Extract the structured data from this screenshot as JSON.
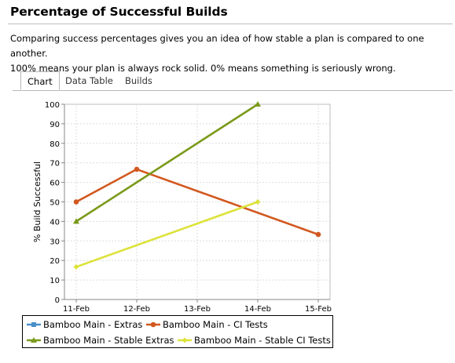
{
  "page": {
    "title": "Percentage of Successful Builds",
    "description_line1": "Comparing success percentages gives you an idea of how stable a plan is compared to one another.",
    "description_line2": "100% means your plan is always rock solid. 0% means something is seriously wrong."
  },
  "tabs": [
    {
      "label": "Chart",
      "active": true
    },
    {
      "label": "Data Table",
      "active": false
    },
    {
      "label": "Builds",
      "active": false
    }
  ],
  "chart_data": {
    "type": "line",
    "title": "",
    "xlabel": "",
    "ylabel": "% Build Successful",
    "categories": [
      "11-Feb",
      "12-Feb",
      "13-Feb",
      "14-Feb",
      "15-Feb"
    ],
    "yticks": [
      "0",
      "10",
      "20",
      "30",
      "40",
      "50",
      "60",
      "70",
      "80",
      "90",
      "100"
    ],
    "ylim": [
      0,
      100
    ],
    "grid": true,
    "legend_position": "bottom",
    "series": [
      {
        "name": "Bamboo Main - Extras",
        "color": "#4a90c8",
        "marker": "square",
        "values": [
          null,
          null,
          null,
          null,
          null
        ]
      },
      {
        "name": "Bamboo Main - CI Tests",
        "color": "#d2581f",
        "marker": "circle",
        "values": [
          50,
          66.7,
          null,
          null,
          33.3
        ]
      },
      {
        "name": "Bamboo Main - Stable Extras",
        "color": "#7a9a1a",
        "marker": "triangle",
        "values": [
          40,
          null,
          null,
          100,
          null
        ]
      },
      {
        "name": "Bamboo Main - Stable CI Tests",
        "color": "#dde23a",
        "marker": "diamond",
        "values": [
          16.7,
          null,
          null,
          50,
          null
        ]
      }
    ]
  }
}
